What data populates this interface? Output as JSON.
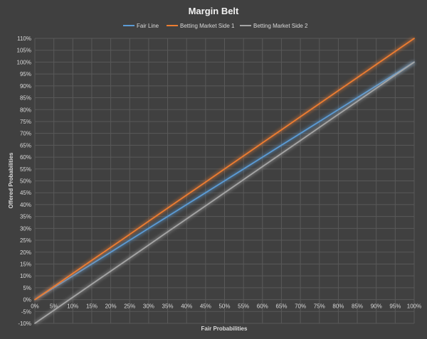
{
  "chart_data": {
    "type": "line",
    "title": "Margin Belt",
    "xlabel": "Fair Probabilities",
    "ylabel": "Offered Probabilities",
    "x": [
      0,
      5,
      10,
      15,
      20,
      25,
      30,
      35,
      40,
      45,
      50,
      55,
      60,
      65,
      70,
      75,
      80,
      85,
      90,
      95,
      100
    ],
    "x_tick_labels": [
      "0%",
      "5%",
      "10%",
      "15%",
      "20%",
      "25%",
      "30%",
      "35%",
      "40%",
      "45%",
      "50%",
      "55%",
      "60%",
      "65%",
      "70%",
      "75%",
      "80%",
      "85%",
      "90%",
      "95%",
      "100%"
    ],
    "xlim": [
      0,
      100
    ],
    "ylim": [
      -10,
      110
    ],
    "y_ticks": [
      -10,
      -5,
      0,
      5,
      10,
      15,
      20,
      25,
      30,
      35,
      40,
      45,
      50,
      55,
      60,
      65,
      70,
      75,
      80,
      85,
      90,
      95,
      100,
      105,
      110
    ],
    "y_tick_labels": [
      "-10%",
      "-5%",
      "0%",
      "5%",
      "10%",
      "15%",
      "20%",
      "25%",
      "30%",
      "35%",
      "40%",
      "45%",
      "50%",
      "55%",
      "60%",
      "65%",
      "70%",
      "75%",
      "80%",
      "85%",
      "90%",
      "95%",
      "100%",
      "105%",
      "110%"
    ],
    "grid": true,
    "legend_position": "top",
    "series": [
      {
        "name": "Fair Line",
        "color": "#5b9bd5",
        "values": [
          0,
          5,
          10,
          15,
          20,
          25,
          30,
          35,
          40,
          45,
          50,
          55,
          60,
          65,
          70,
          75,
          80,
          85,
          90,
          95,
          100
        ]
      },
      {
        "name": "Betting Market Side 1",
        "color": "#ed7d31",
        "values": [
          0,
          5.5,
          11,
          16.5,
          22,
          27.5,
          33,
          38.5,
          44,
          49.5,
          55,
          60.5,
          66,
          71.5,
          77,
          82.5,
          88,
          93.5,
          99,
          104.5,
          110
        ]
      },
      {
        "name": "Betting Market Side 2",
        "color": "#a5a5a5",
        "values": [
          -10,
          -4.5,
          1,
          6.5,
          12,
          17.5,
          23,
          28.5,
          34,
          39.5,
          45,
          50.5,
          56,
          61.5,
          67,
          72.5,
          78,
          83.5,
          89,
          94.5,
          100
        ]
      }
    ]
  }
}
